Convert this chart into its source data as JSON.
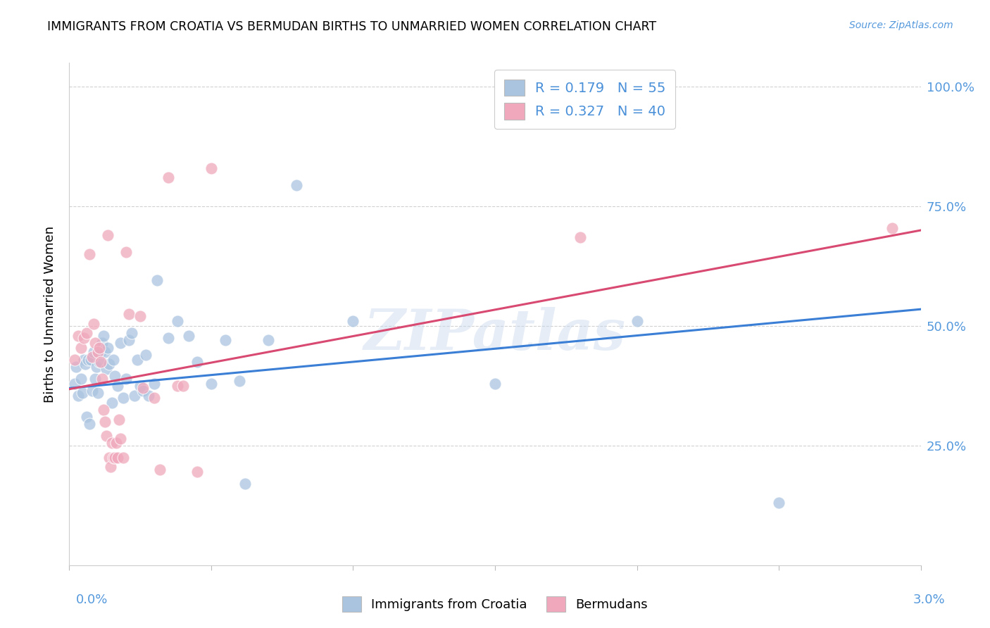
{
  "title": "IMMIGRANTS FROM CROATIA VS BERMUDAN BIRTHS TO UNMARRIED WOMEN CORRELATION CHART",
  "source": "Source: ZipAtlas.com",
  "ylabel": "Births to Unmarried Women",
  "yticks_labels": [
    "25.0%",
    "50.0%",
    "75.0%",
    "100.0%"
  ],
  "ytick_vals": [
    0.25,
    0.5,
    0.75,
    1.0
  ],
  "xmin": 0.0,
  "xmax": 0.03,
  "ymin": 0.0,
  "ymax": 1.05,
  "blue_color": "#aac4e0",
  "pink_color": "#f0a8bc",
  "blue_line_color": "#3a7fd5",
  "pink_line_color": "#d84a72",
  "watermark": "ZIPatlas",
  "blue_r": 0.179,
  "blue_n": 55,
  "pink_r": 0.327,
  "pink_n": 40,
  "legend_label_color": "#4a90d9",
  "blue_points": [
    [
      0.0002,
      0.38
    ],
    [
      0.00025,
      0.415
    ],
    [
      0.0003,
      0.355
    ],
    [
      0.0004,
      0.39
    ],
    [
      0.00045,
      0.36
    ],
    [
      0.0005,
      0.43
    ],
    [
      0.00055,
      0.42
    ],
    [
      0.0006,
      0.31
    ],
    [
      0.00065,
      0.43
    ],
    [
      0.0007,
      0.295
    ],
    [
      0.00075,
      0.43
    ],
    [
      0.0008,
      0.365
    ],
    [
      0.00085,
      0.445
    ],
    [
      0.0009,
      0.39
    ],
    [
      0.00095,
      0.415
    ],
    [
      0.001,
      0.36
    ],
    [
      0.00105,
      0.425
    ],
    [
      0.0011,
      0.445
    ],
    [
      0.00115,
      0.465
    ],
    [
      0.0012,
      0.48
    ],
    [
      0.00125,
      0.445
    ],
    [
      0.0013,
      0.41
    ],
    [
      0.00135,
      0.455
    ],
    [
      0.0014,
      0.42
    ],
    [
      0.0015,
      0.34
    ],
    [
      0.00155,
      0.43
    ],
    [
      0.0016,
      0.395
    ],
    [
      0.0017,
      0.375
    ],
    [
      0.0018,
      0.465
    ],
    [
      0.0019,
      0.35
    ],
    [
      0.002,
      0.39
    ],
    [
      0.0021,
      0.47
    ],
    [
      0.0022,
      0.485
    ],
    [
      0.0023,
      0.355
    ],
    [
      0.0024,
      0.43
    ],
    [
      0.0025,
      0.375
    ],
    [
      0.0026,
      0.365
    ],
    [
      0.0027,
      0.44
    ],
    [
      0.0028,
      0.355
    ],
    [
      0.003,
      0.38
    ],
    [
      0.0031,
      0.595
    ],
    [
      0.0035,
      0.475
    ],
    [
      0.0038,
      0.51
    ],
    [
      0.0042,
      0.48
    ],
    [
      0.0045,
      0.425
    ],
    [
      0.005,
      0.38
    ],
    [
      0.0055,
      0.47
    ],
    [
      0.006,
      0.385
    ],
    [
      0.0062,
      0.17
    ],
    [
      0.007,
      0.47
    ],
    [
      0.008,
      0.795
    ],
    [
      0.01,
      0.51
    ],
    [
      0.015,
      0.38
    ],
    [
      0.02,
      0.51
    ],
    [
      0.025,
      0.13
    ]
  ],
  "pink_points": [
    [
      0.0002,
      0.43
    ],
    [
      0.0003,
      0.48
    ],
    [
      0.0004,
      0.455
    ],
    [
      0.0005,
      0.475
    ],
    [
      0.0006,
      0.485
    ],
    [
      0.0007,
      0.65
    ],
    [
      0.0008,
      0.435
    ],
    [
      0.00085,
      0.505
    ],
    [
      0.0009,
      0.465
    ],
    [
      0.001,
      0.445
    ],
    [
      0.00105,
      0.455
    ],
    [
      0.0011,
      0.425
    ],
    [
      0.00115,
      0.39
    ],
    [
      0.0012,
      0.325
    ],
    [
      0.00125,
      0.3
    ],
    [
      0.0013,
      0.27
    ],
    [
      0.00135,
      0.69
    ],
    [
      0.0014,
      0.225
    ],
    [
      0.00145,
      0.205
    ],
    [
      0.0015,
      0.255
    ],
    [
      0.00155,
      0.225
    ],
    [
      0.0016,
      0.225
    ],
    [
      0.00165,
      0.255
    ],
    [
      0.0017,
      0.225
    ],
    [
      0.00175,
      0.305
    ],
    [
      0.0018,
      0.265
    ],
    [
      0.0019,
      0.225
    ],
    [
      0.002,
      0.655
    ],
    [
      0.0021,
      0.525
    ],
    [
      0.0025,
      0.52
    ],
    [
      0.0026,
      0.37
    ],
    [
      0.003,
      0.35
    ],
    [
      0.0032,
      0.2
    ],
    [
      0.0035,
      0.81
    ],
    [
      0.0038,
      0.375
    ],
    [
      0.004,
      0.375
    ],
    [
      0.0045,
      0.195
    ],
    [
      0.005,
      0.83
    ],
    [
      0.018,
      0.685
    ],
    [
      0.029,
      0.705
    ]
  ]
}
